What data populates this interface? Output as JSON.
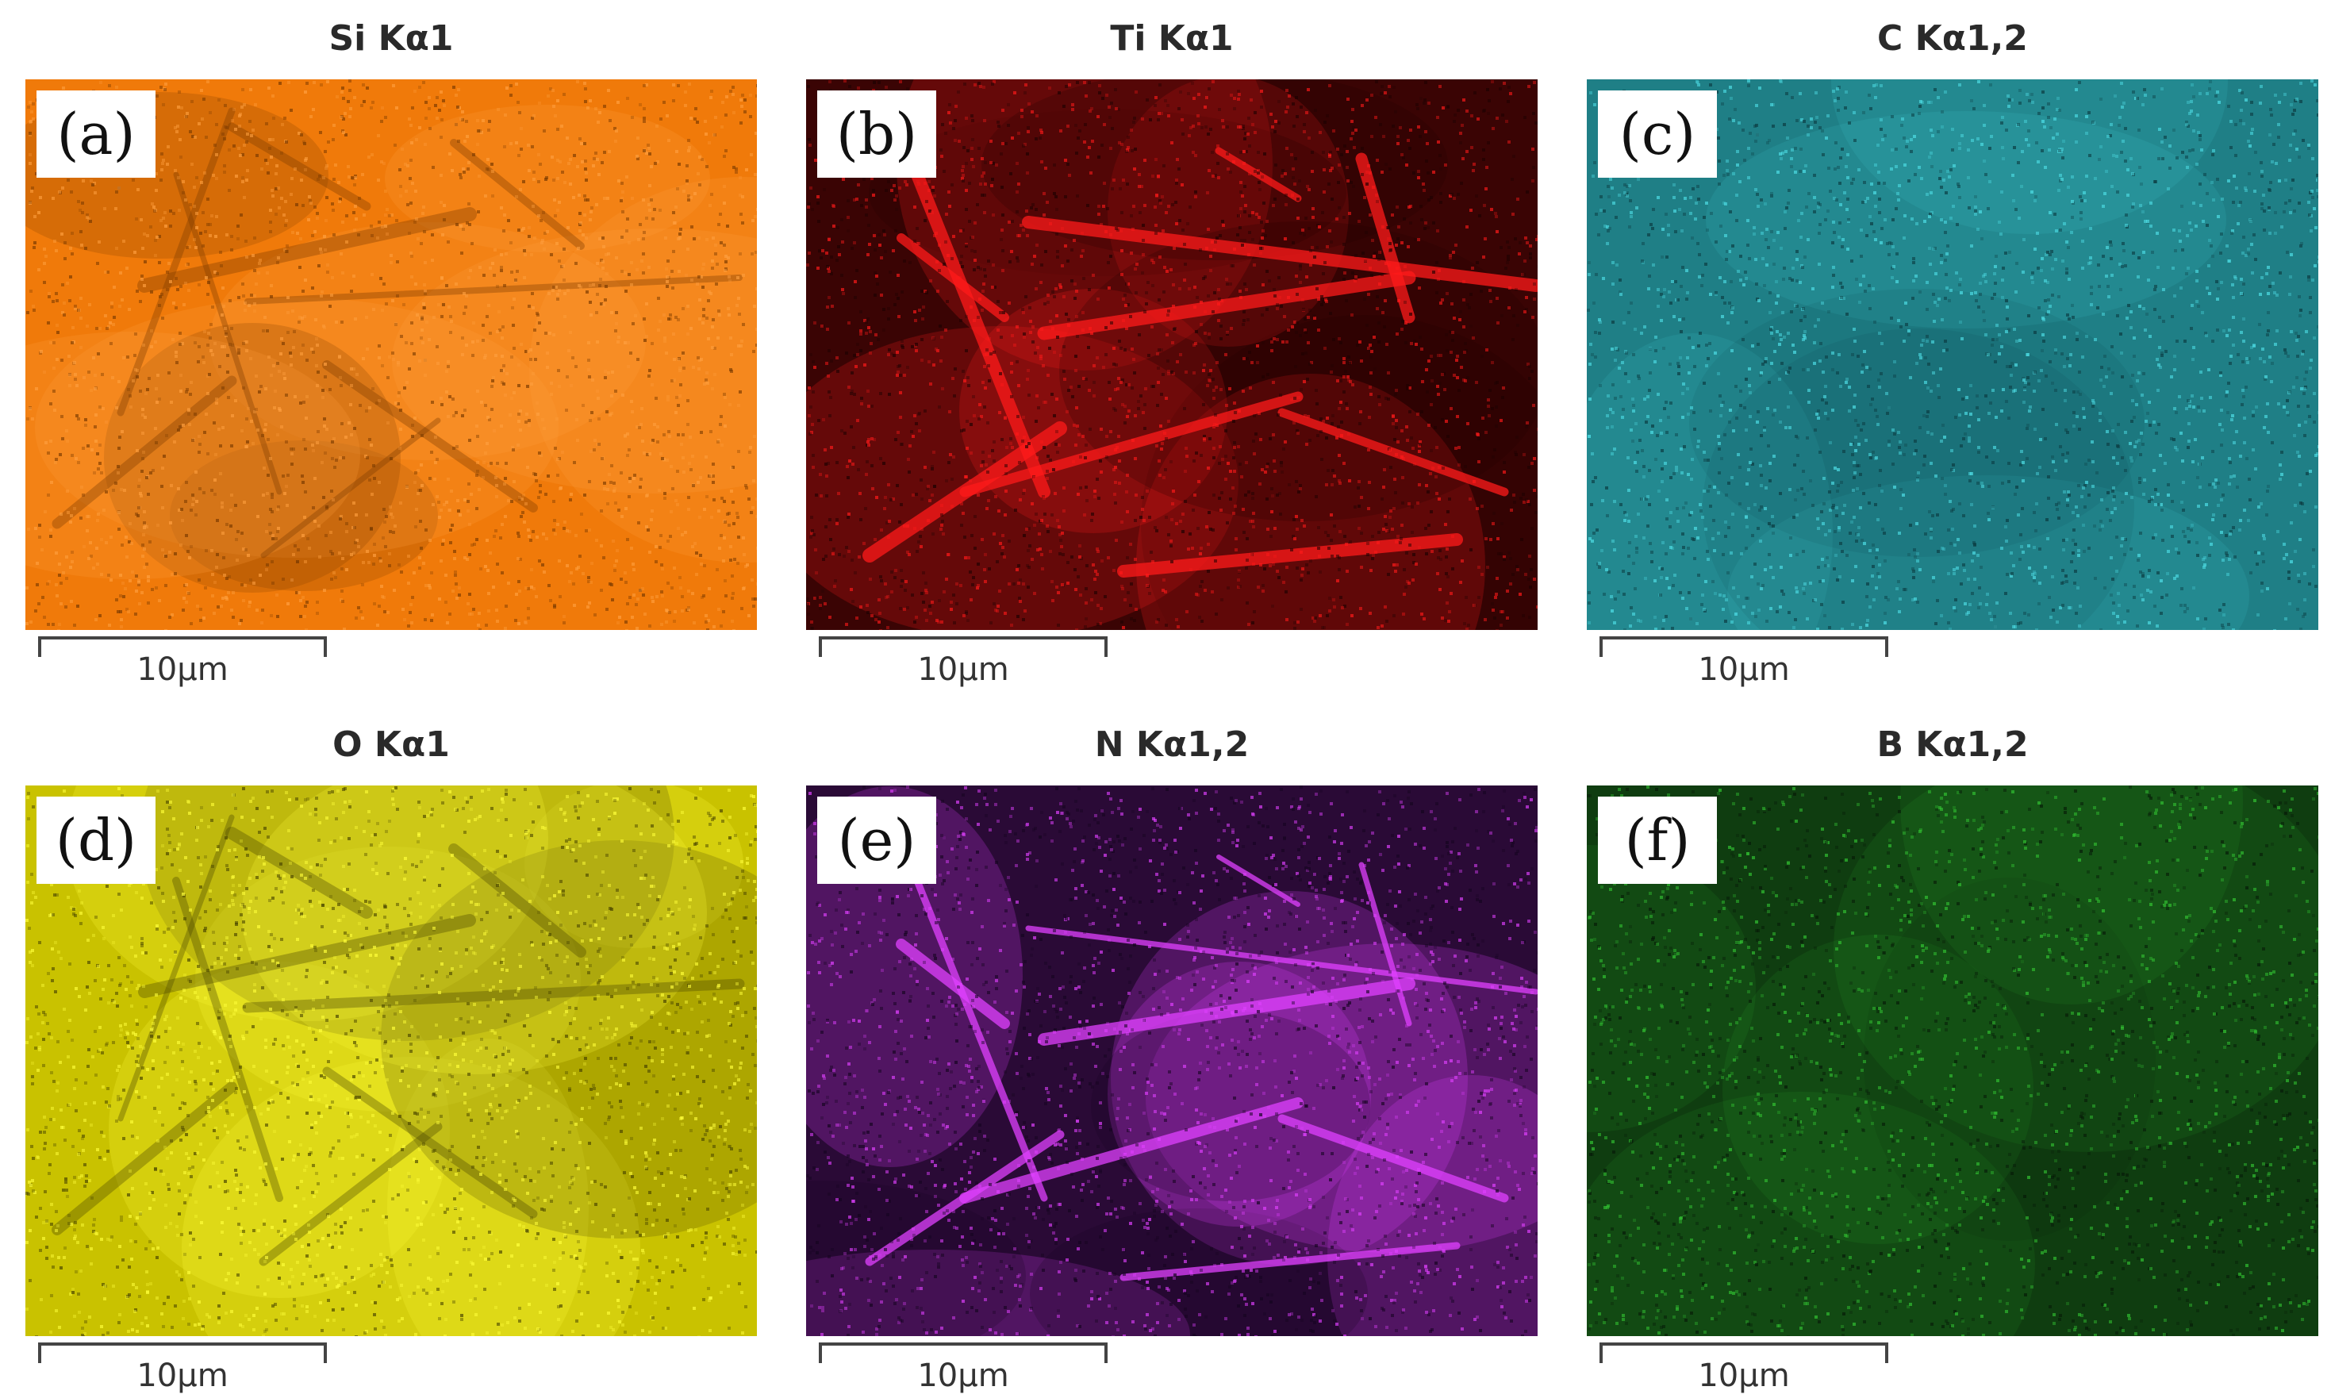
{
  "panels": [
    {
      "label": "(a)",
      "title": "Si Kα1",
      "scale_label": "10µm",
      "base_color": "#f07a0a",
      "shade_color": "#7a3a00",
      "highlight_color": "#ffa040",
      "feature_mode": "dark-needles"
    },
    {
      "label": "(b)",
      "title": "Ti Kα1",
      "scale_label": "10µm",
      "base_color": "#3a0404",
      "shade_color": "#1e0202",
      "highlight_color": "#ff1a1a",
      "feature_mode": "bright-needles"
    },
    {
      "label": "(c)",
      "title": "C Kα1,2",
      "scale_label": "10µm",
      "base_color": "#1f7f86",
      "shade_color": "#0b3a40",
      "highlight_color": "#4fe0e8",
      "feature_mode": "noise"
    },
    {
      "label": "(d)",
      "title": "O Kα1",
      "scale_label": "10µm",
      "base_color": "#c9c200",
      "shade_color": "#4a4600",
      "highlight_color": "#ffff3a",
      "feature_mode": "dark-needles"
    },
    {
      "label": "(e)",
      "title": "N Kα1,2",
      "scale_label": "10µm",
      "base_color": "#2a0a36",
      "shade_color": "#150420",
      "highlight_color": "#e040ff",
      "feature_mode": "bright-needles"
    },
    {
      "label": "(f)",
      "title": "B Kα1,2",
      "scale_label": "10µm",
      "base_color": "#0f3d10",
      "shade_color": "#061a07",
      "highlight_color": "#32c432",
      "feature_mode": "noise"
    }
  ]
}
